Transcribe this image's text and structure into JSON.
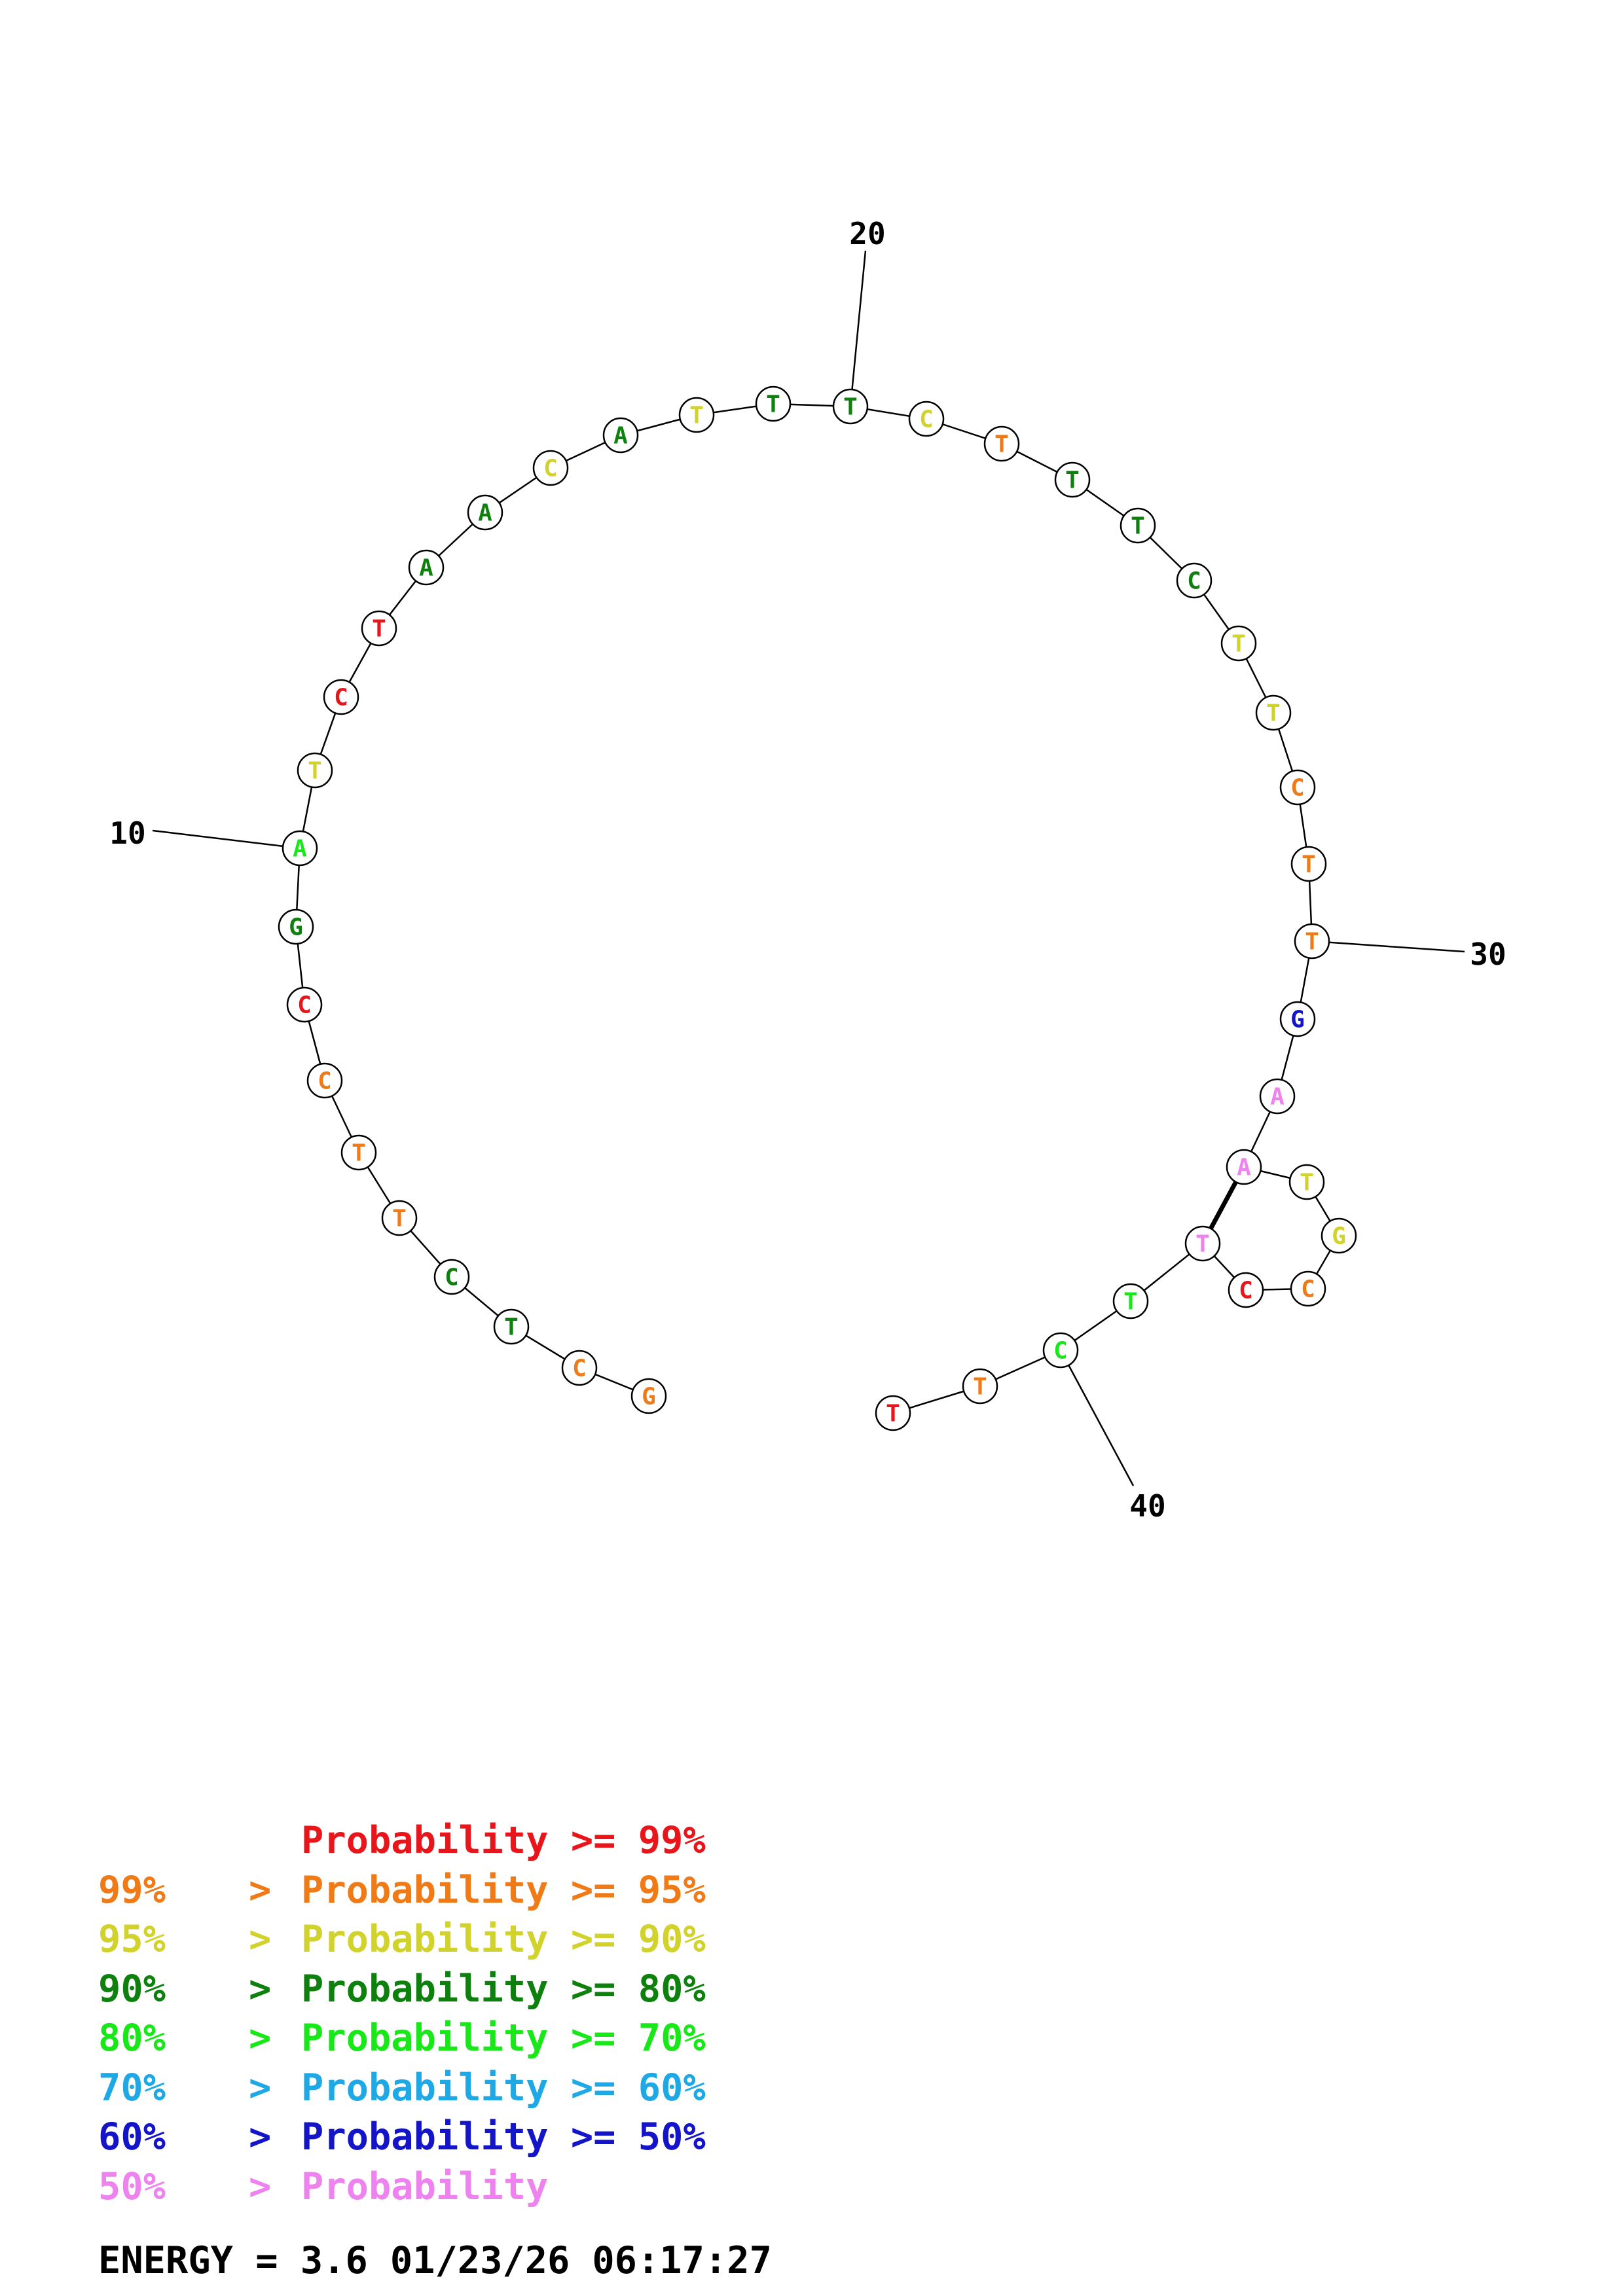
{
  "colors": {
    "red": "#e8161a",
    "orange": "#f07a16",
    "yellow": "#d2d22c",
    "darkgreen": "#0d800d",
    "green": "#18e818",
    "cyan": "#1ea8e6",
    "blue": "#1414c8",
    "pink": "#ee82ee"
  },
  "sequence": [
    {
      "n": 1,
      "base": "G",
      "color": "orange"
    },
    {
      "n": 2,
      "base": "C",
      "color": "orange"
    },
    {
      "n": 3,
      "base": "T",
      "color": "darkgreen"
    },
    {
      "n": 4,
      "base": "C",
      "color": "darkgreen"
    },
    {
      "n": 5,
      "base": "T",
      "color": "orange"
    },
    {
      "n": 6,
      "base": "T",
      "color": "orange"
    },
    {
      "n": 7,
      "base": "C",
      "color": "orange"
    },
    {
      "n": 8,
      "base": "C",
      "color": "red"
    },
    {
      "n": 9,
      "base": "G",
      "color": "darkgreen"
    },
    {
      "n": 10,
      "base": "A",
      "color": "green"
    },
    {
      "n": 11,
      "base": "T",
      "color": "yellow"
    },
    {
      "n": 12,
      "base": "C",
      "color": "red"
    },
    {
      "n": 13,
      "base": "T",
      "color": "red"
    },
    {
      "n": 14,
      "base": "A",
      "color": "darkgreen"
    },
    {
      "n": 15,
      "base": "A",
      "color": "darkgreen"
    },
    {
      "n": 16,
      "base": "C",
      "color": "yellow"
    },
    {
      "n": 17,
      "base": "A",
      "color": "darkgreen"
    },
    {
      "n": 18,
      "base": "T",
      "color": "yellow"
    },
    {
      "n": 19,
      "base": "T",
      "color": "darkgreen"
    },
    {
      "n": 20,
      "base": "T",
      "color": "darkgreen"
    },
    {
      "n": 21,
      "base": "C",
      "color": "yellow"
    },
    {
      "n": 22,
      "base": "T",
      "color": "orange"
    },
    {
      "n": 23,
      "base": "T",
      "color": "darkgreen"
    },
    {
      "n": 24,
      "base": "T",
      "color": "darkgreen"
    },
    {
      "n": 25,
      "base": "C",
      "color": "darkgreen"
    },
    {
      "n": 26,
      "base": "T",
      "color": "yellow"
    },
    {
      "n": 27,
      "base": "T",
      "color": "yellow"
    },
    {
      "n": 28,
      "base": "C",
      "color": "orange"
    },
    {
      "n": 29,
      "base": "T",
      "color": "orange"
    },
    {
      "n": 30,
      "base": "T",
      "color": "orange"
    },
    {
      "n": 31,
      "base": "G",
      "color": "blue"
    },
    {
      "n": 32,
      "base": "A",
      "color": "pink"
    },
    {
      "n": 33,
      "base": "A",
      "color": "pink"
    },
    {
      "n": 34,
      "base": "T",
      "color": "yellow"
    },
    {
      "n": 35,
      "base": "G",
      "color": "yellow"
    },
    {
      "n": 36,
      "base": "C",
      "color": "orange"
    },
    {
      "n": 37,
      "base": "C",
      "color": "red"
    },
    {
      "n": 38,
      "base": "T",
      "color": "pink"
    },
    {
      "n": 39,
      "base": "T",
      "color": "green"
    },
    {
      "n": 40,
      "base": "C",
      "color": "green"
    },
    {
      "n": 41,
      "base": "T",
      "color": "orange"
    },
    {
      "n": 42,
      "base": "T",
      "color": "red"
    }
  ],
  "pairs": [
    [
      33,
      38
    ]
  ],
  "position_labels": [
    "10",
    "20",
    "30",
    "40"
  ],
  "legend": [
    {
      "low": "",
      "gt": "",
      "word": "Probability",
      "op": ">=",
      "high": "99%",
      "color": "red"
    },
    {
      "low": "99%",
      "gt": ">",
      "word": "Probability",
      "op": ">=",
      "high": "95%",
      "color": "orange"
    },
    {
      "low": "95%",
      "gt": ">",
      "word": "Probability",
      "op": ">=",
      "high": "90%",
      "color": "yellow"
    },
    {
      "low": "90%",
      "gt": ">",
      "word": "Probability",
      "op": ">=",
      "high": "80%",
      "color": "darkgreen"
    },
    {
      "low": "80%",
      "gt": ">",
      "word": "Probability",
      "op": ">=",
      "high": "70%",
      "color": "green"
    },
    {
      "low": "70%",
      "gt": ">",
      "word": "Probability",
      "op": ">=",
      "high": "60%",
      "color": "cyan"
    },
    {
      "low": "60%",
      "gt": ">",
      "word": "Probability",
      "op": ">=",
      "high": "50%",
      "color": "blue"
    },
    {
      "low": "50%",
      "gt": ">",
      "word": "Probability",
      "op": "",
      "high": "",
      "color": "pink"
    }
  ],
  "footer": {
    "energy_label": "ENERGY = 3.6",
    "date": "01/23/26",
    "time": "06:17:27"
  }
}
